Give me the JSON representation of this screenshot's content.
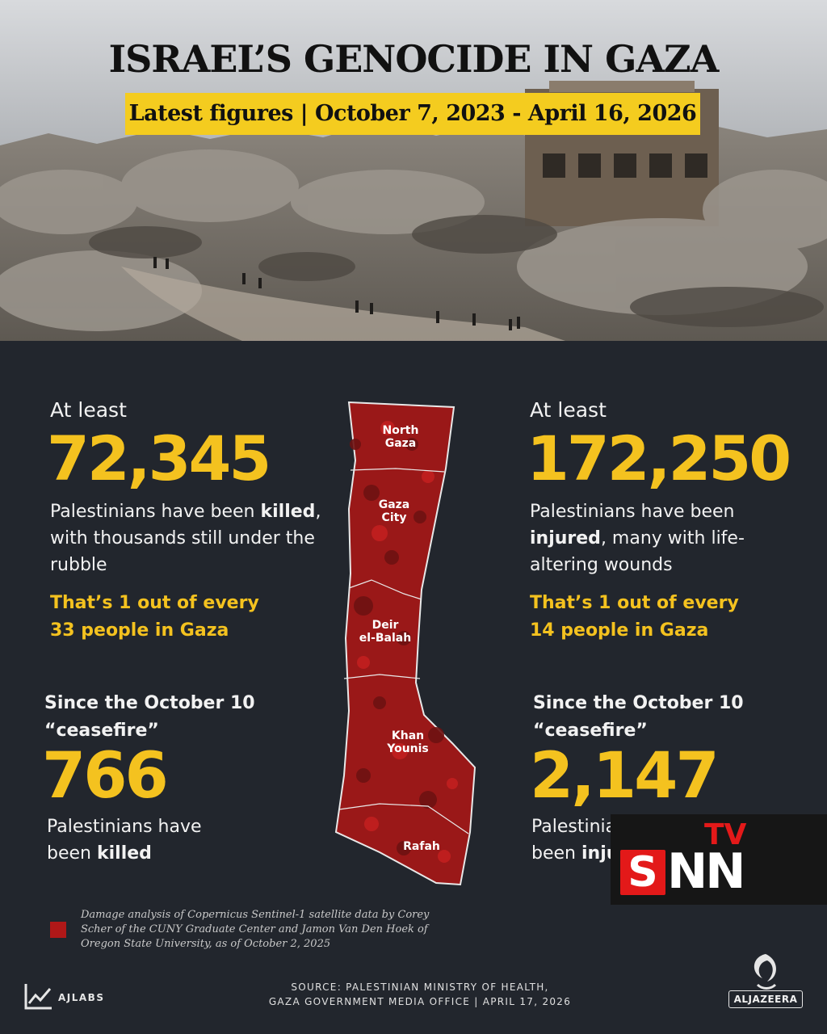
{
  "header": {
    "title": "ISRAEL’S GENOCIDE IN GAZA",
    "subtitle": "Latest figures | October 7, 2023 - April 16, 2026"
  },
  "killed": {
    "lead": "At least",
    "figure": "72,345",
    "desc_pre": "Palestinians have been ",
    "desc_bold": "killed",
    "desc_post": ", with thousands still under the rubble",
    "ratio_line1": "That’s 1 out of every",
    "ratio_line2": "33 people in Gaza"
  },
  "injured": {
    "lead": "At least",
    "figure": "172,250",
    "desc_pre": "Palestinians have been ",
    "desc_bold": "injured",
    "desc_post": ", many with life-altering wounds",
    "ratio_line1": "That’s 1 out of every",
    "ratio_line2": "14 people in Gaza"
  },
  "ceasefire_killed": {
    "line1": "Since the October 10",
    "line2": "“ceasefire”",
    "figure": "766",
    "desc_pre": "Palestinians have been ",
    "desc_bold": "killed"
  },
  "ceasefire_injured": {
    "line1": "Since the October 10",
    "line2": "“ceasefire”",
    "figure": "2,147",
    "desc_pre": "Palestinians have been ",
    "desc_bold": "injured"
  },
  "map": {
    "region1": [
      "North",
      "Gaza"
    ],
    "region2": [
      "Gaza",
      "City"
    ],
    "region3": [
      "Deir",
      "el-Balah"
    ],
    "region4": [
      "Khan",
      "Younis"
    ],
    "region5": [
      "Rafah"
    ],
    "damage_color": "#b01818"
  },
  "legend": {
    "text": "Damage analysis of Copernicus Sentinel-1 satellite data by  Corey Scher of the CUNY Graduate Center and Jamon Van Den Hoek of Oregon State University, as of  October 2, 2025"
  },
  "source": {
    "line1": "SOURCE:  PALESTINIAN MINISTRY OF HEALTH,",
    "line2": "GAZA GOVERNMENT MEDIA OFFICE  |  APRIL 17, 2026"
  },
  "branding": {
    "ajlabs": "AJLABS",
    "aljazeera": "ALJAZEERA",
    "snn_s": "S",
    "snn_nn": "NN",
    "snn_tv": "TV"
  },
  "colors": {
    "background": "#22262d",
    "accent_yellow": "#f4c21f",
    "damage_red": "#b01818"
  }
}
